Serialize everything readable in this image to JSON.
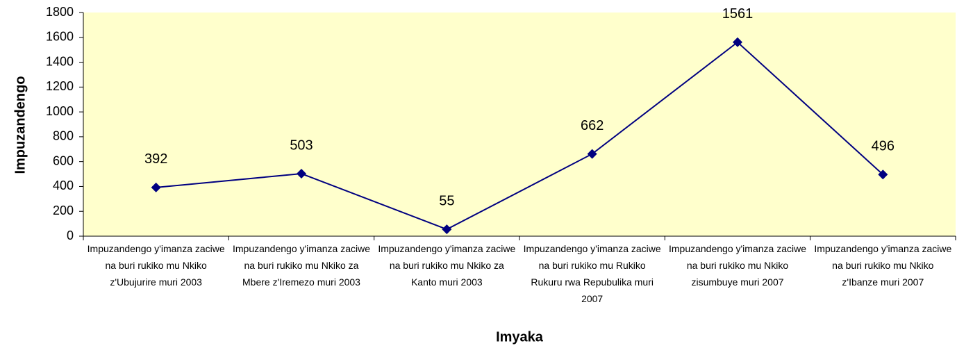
{
  "chart_data": {
    "type": "line",
    "x_label": "Imyaka",
    "y_label": "Impuzandengo",
    "categories": [
      "Impuzandengo y'imanza zaciwe na buri rukiko mu Nkiko z'Ubujurire muri 2003",
      "Impuzandengo y'imanza zaciwe na buri rukiko mu Nkiko za Mbere z'Iremezo muri 2003",
      "Impuzandengo y'imanza zaciwe na buri rukiko mu Nkiko za Kanto muri 2003",
      "Impuzandengo y'imanza zaciwe na buri rukiko mu Rukiko Rukuru rwa Repubulika muri 2007",
      "Impuzandengo y'imanza zaciwe na buri rukiko mu Nkiko zisumbuye muri 2007",
      "Impuzandengo y'imanza zaciwe na buri rukiko mu Nkiko z'Ibanze muri 2007"
    ],
    "values": [
      392,
      503,
      55,
      662,
      1561,
      496
    ],
    "color": "#000080",
    "plot_background": "#ffffcc",
    "ylim": [
      0,
      1800
    ],
    "yticks": [
      0,
      200,
      400,
      600,
      800,
      1000,
      1200,
      1400,
      1600,
      1800
    ],
    "grid": false
  }
}
